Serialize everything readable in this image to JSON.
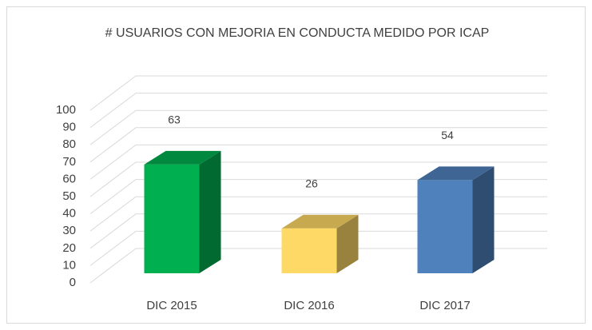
{
  "chart_data": {
    "type": "bar3d",
    "title": "# USUARIOS CON MEJORIA EN CONDUCTA MEDIDO POR ICAP",
    "categories": [
      "DIC 2015",
      "DIC 2016",
      "DIC 2017"
    ],
    "values": [
      63,
      26,
      54
    ],
    "colors": [
      "#00b050",
      "#ffd966",
      "#4f81bd"
    ],
    "ylim": [
      0,
      100
    ],
    "yticks": [
      0,
      10,
      20,
      30,
      40,
      50,
      60,
      70,
      80,
      90,
      100
    ],
    "grid": true
  }
}
